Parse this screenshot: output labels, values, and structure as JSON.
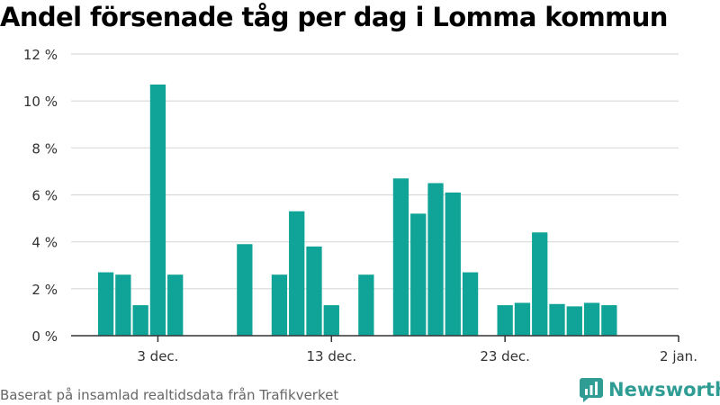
{
  "title": "Andel försenade tåg per dag i Lomma kommun",
  "source": "Baserat på insamlad realtidsdata från Trafikverket",
  "brand": {
    "name": "Newsworthy",
    "icon": "newsworthy-logo-icon",
    "color": "#2f9d94"
  },
  "colors": {
    "bar": "#0fa497",
    "grid": "#d9d9d9",
    "axis": "#333333",
    "tick_text": "#333333"
  },
  "chart_data": {
    "type": "bar",
    "title": "Andel försenade tåg per dag i Lomma kommun",
    "xlabel": "",
    "ylabel": "",
    "x_range": [
      "2021-11-28",
      "2022-01-02"
    ],
    "x_ticks": [
      {
        "date": "2021-12-03",
        "label": "3 dec."
      },
      {
        "date": "2021-12-13",
        "label": "13 dec."
      },
      {
        "date": "2021-12-23",
        "label": "23 dec."
      },
      {
        "date": "2022-01-02",
        "label": "2 jan."
      }
    ],
    "ylim": [
      0,
      12
    ],
    "y_ticks": [
      0,
      2,
      4,
      6,
      8,
      10,
      12
    ],
    "y_tick_labels": [
      "0 %",
      "2 %",
      "4 %",
      "6 %",
      "8 %",
      "10 %",
      "12 %"
    ],
    "grid": true,
    "legend": false,
    "points": [
      {
        "date": "2021-11-30",
        "value": 2.7
      },
      {
        "date": "2021-12-01",
        "value": 2.6
      },
      {
        "date": "2021-12-02",
        "value": 1.3
      },
      {
        "date": "2021-12-03",
        "value": 10.7
      },
      {
        "date": "2021-12-04",
        "value": 2.6
      },
      {
        "date": "2021-12-05",
        "value": 0
      },
      {
        "date": "2021-12-06",
        "value": 0
      },
      {
        "date": "2021-12-07",
        "value": 0
      },
      {
        "date": "2021-12-08",
        "value": 3.9
      },
      {
        "date": "2021-12-09",
        "value": 0
      },
      {
        "date": "2021-12-10",
        "value": 2.6
      },
      {
        "date": "2021-12-11",
        "value": 5.3
      },
      {
        "date": "2021-12-12",
        "value": 3.8
      },
      {
        "date": "2021-12-13",
        "value": 1.3
      },
      {
        "date": "2021-12-14",
        "value": 0
      },
      {
        "date": "2021-12-15",
        "value": 2.6
      },
      {
        "date": "2021-12-16",
        "value": 0
      },
      {
        "date": "2021-12-17",
        "value": 6.7
      },
      {
        "date": "2021-12-18",
        "value": 5.2
      },
      {
        "date": "2021-12-19",
        "value": 6.5
      },
      {
        "date": "2021-12-20",
        "value": 6.1
      },
      {
        "date": "2021-12-21",
        "value": 2.7
      },
      {
        "date": "2021-12-22",
        "value": 0
      },
      {
        "date": "2021-12-23",
        "value": 1.3
      },
      {
        "date": "2021-12-24",
        "value": 1.4
      },
      {
        "date": "2021-12-25",
        "value": 4.4
      },
      {
        "date": "2021-12-26",
        "value": 1.35
      },
      {
        "date": "2021-12-27",
        "value": 1.25
      },
      {
        "date": "2021-12-28",
        "value": 1.4
      },
      {
        "date": "2021-12-29",
        "value": 1.3
      }
    ]
  }
}
